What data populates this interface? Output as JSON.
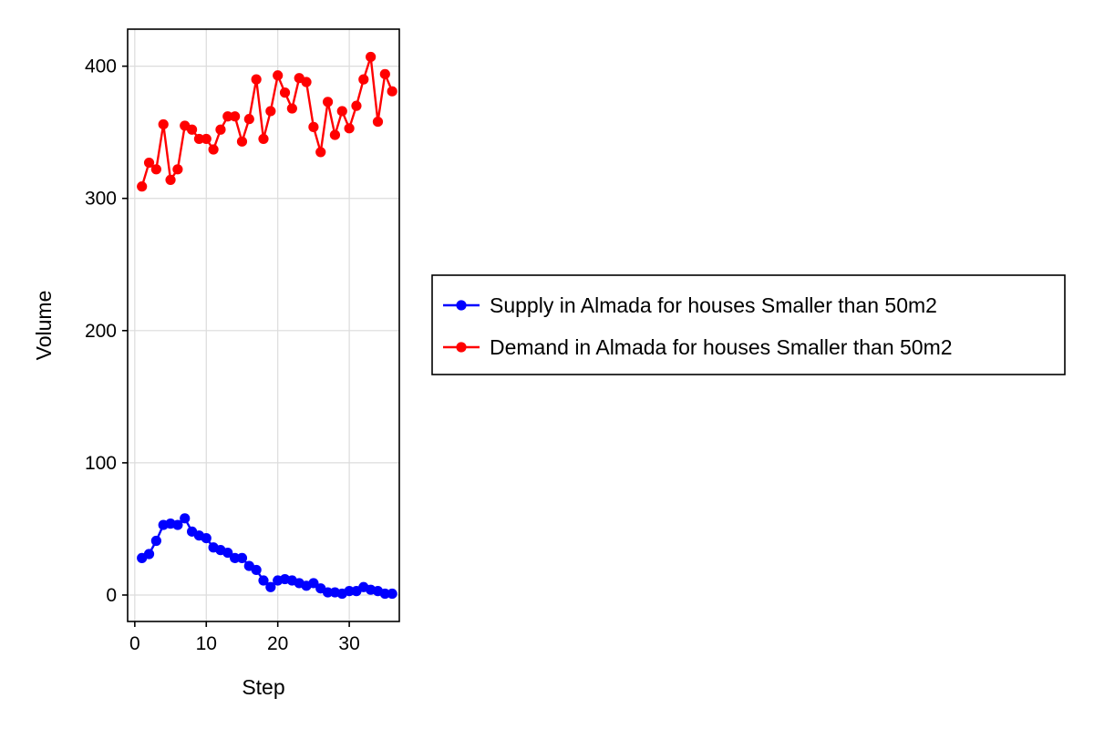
{
  "chart_data": {
    "type": "line",
    "title": "",
    "xlabel": "Step",
    "ylabel": "Volume",
    "xlim": [
      -1,
      37
    ],
    "ylim": [
      -20,
      428
    ],
    "xticks": [
      0,
      10,
      20,
      30
    ],
    "yticks": [
      0,
      100,
      200,
      300,
      400
    ],
    "grid": true,
    "legend_position": "right",
    "x": [
      1,
      2,
      3,
      4,
      5,
      6,
      7,
      8,
      9,
      10,
      11,
      12,
      13,
      14,
      15,
      16,
      17,
      18,
      19,
      20,
      21,
      22,
      23,
      24,
      25,
      26,
      27,
      28,
      29,
      30,
      31,
      32,
      33,
      34,
      35,
      36
    ],
    "series": [
      {
        "name": "Supply in Almada for houses Smaller than 50m2",
        "color": "#0000ff",
        "values": [
          28,
          31,
          41,
          53,
          54,
          53,
          58,
          48,
          45,
          43,
          36,
          34,
          32,
          28,
          28,
          22,
          19,
          11,
          6,
          11,
          12,
          11,
          9,
          7,
          9,
          5,
          2,
          2,
          1,
          3,
          3,
          6,
          4,
          3,
          1,
          1
        ]
      },
      {
        "name": "Demand in Almada for houses Smaller than 50m2",
        "color": "#ff0000",
        "values": [
          309,
          327,
          322,
          356,
          314,
          322,
          355,
          352,
          345,
          345,
          337,
          352,
          362,
          362,
          343,
          360,
          390,
          345,
          366,
          393,
          380,
          368,
          391,
          388,
          354,
          335,
          373,
          348,
          366,
          353,
          370,
          390,
          407,
          358,
          394,
          381
        ]
      }
    ]
  }
}
